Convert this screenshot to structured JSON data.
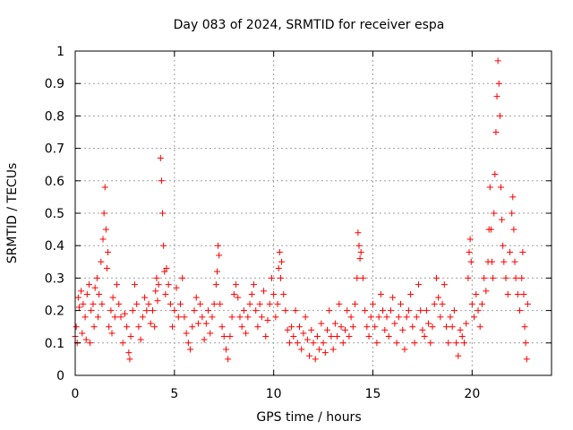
{
  "chart_data": {
    "type": "scatter",
    "title": "Day 083 of 2024, SRMTID for receiver espa",
    "xlabel": "GPS time / hours",
    "ylabel": "SRMTID / TECUs",
    "xlim": [
      0,
      24
    ],
    "ylim": [
      0,
      1
    ],
    "x_ticks": [
      {
        "value": 0,
        "label": "0"
      },
      {
        "value": 5,
        "label": "5"
      },
      {
        "value": 10,
        "label": "10"
      },
      {
        "value": 15,
        "label": "15"
      },
      {
        "value": 20,
        "label": "20"
      }
    ],
    "y_ticks": [
      {
        "value": 0,
        "label": "0"
      },
      {
        "value": 0.1,
        "label": "0.1"
      },
      {
        "value": 0.2,
        "label": "0.2"
      },
      {
        "value": 0.3,
        "label": "0.3"
      },
      {
        "value": 0.4,
        "label": "0.4"
      },
      {
        "value": 0.5,
        "label": "0.5"
      },
      {
        "value": 0.6,
        "label": "0.6"
      },
      {
        "value": 0.7,
        "label": "0.7"
      },
      {
        "value": 0.8,
        "label": "0.8"
      },
      {
        "value": 0.9,
        "label": "0.9"
      },
      {
        "value": 1,
        "label": "1"
      }
    ],
    "grid": true,
    "legend": "none",
    "marker": "plus",
    "color": "#ff0000",
    "series": [
      {
        "name": "SRMTID",
        "points": [
          [
            0.0,
            0.12
          ],
          [
            0.05,
            0.15
          ],
          [
            0.1,
            0.1
          ],
          [
            0.15,
            0.24
          ],
          [
            0.2,
            0.21
          ],
          [
            0.3,
            0.26
          ],
          [
            0.35,
            0.13
          ],
          [
            0.4,
            0.22
          ],
          [
            0.5,
            0.18
          ],
          [
            0.55,
            0.11
          ],
          [
            0.6,
            0.25
          ],
          [
            0.7,
            0.28
          ],
          [
            0.75,
            0.1
          ],
          [
            0.8,
            0.2
          ],
          [
            0.9,
            0.22
          ],
          [
            0.95,
            0.15
          ],
          [
            1.0,
            0.27
          ],
          [
            1.1,
            0.3
          ],
          [
            1.15,
            0.18
          ],
          [
            1.2,
            0.25
          ],
          [
            1.3,
            0.35
          ],
          [
            1.35,
            0.22
          ],
          [
            1.4,
            0.42
          ],
          [
            1.45,
            0.5
          ],
          [
            1.5,
            0.58
          ],
          [
            1.55,
            0.45
          ],
          [
            1.6,
            0.33
          ],
          [
            1.65,
            0.38
          ],
          [
            1.7,
            0.15
          ],
          [
            1.8,
            0.2
          ],
          [
            1.85,
            0.13
          ],
          [
            1.9,
            0.24
          ],
          [
            2.0,
            0.18
          ],
          [
            2.1,
            0.28
          ],
          [
            2.2,
            0.22
          ],
          [
            2.3,
            0.18
          ],
          [
            2.4,
            0.1
          ],
          [
            2.5,
            0.19
          ],
          [
            2.6,
            0.15
          ],
          [
            2.7,
            0.07
          ],
          [
            2.75,
            0.05
          ],
          [
            2.8,
            0.12
          ],
          [
            2.9,
            0.2
          ],
          [
            3.0,
            0.28
          ],
          [
            3.1,
            0.22
          ],
          [
            3.2,
            0.15
          ],
          [
            3.3,
            0.11
          ],
          [
            3.4,
            0.18
          ],
          [
            3.5,
            0.24
          ],
          [
            3.6,
            0.2
          ],
          [
            3.7,
            0.22
          ],
          [
            3.8,
            0.16
          ],
          [
            3.9,
            0.2
          ],
          [
            4.0,
            0.15
          ],
          [
            4.05,
            0.26
          ],
          [
            4.1,
            0.3
          ],
          [
            4.15,
            0.23
          ],
          [
            4.2,
            0.28
          ],
          [
            4.3,
            0.67
          ],
          [
            4.35,
            0.6
          ],
          [
            4.4,
            0.5
          ],
          [
            4.45,
            0.4
          ],
          [
            4.5,
            0.32
          ],
          [
            4.55,
            0.25
          ],
          [
            4.6,
            0.33
          ],
          [
            4.7,
            0.28
          ],
          [
            4.8,
            0.22
          ],
          [
            4.9,
            0.15
          ],
          [
            5.0,
            0.2
          ],
          [
            5.1,
            0.27
          ],
          [
            5.2,
            0.18
          ],
          [
            5.3,
            0.22
          ],
          [
            5.4,
            0.3
          ],
          [
            5.5,
            0.18
          ],
          [
            5.6,
            0.13
          ],
          [
            5.7,
            0.1
          ],
          [
            5.8,
            0.08
          ],
          [
            5.9,
            0.15
          ],
          [
            6.0,
            0.2
          ],
          [
            6.1,
            0.24
          ],
          [
            6.2,
            0.16
          ],
          [
            6.3,
            0.22
          ],
          [
            6.4,
            0.18
          ],
          [
            6.5,
            0.11
          ],
          [
            6.6,
            0.16
          ],
          [
            6.7,
            0.2
          ],
          [
            6.8,
            0.13
          ],
          [
            6.9,
            0.18
          ],
          [
            7.0,
            0.22
          ],
          [
            7.1,
            0.28
          ],
          [
            7.15,
            0.32
          ],
          [
            7.2,
            0.4
          ],
          [
            7.25,
            0.37
          ],
          [
            7.3,
            0.22
          ],
          [
            7.4,
            0.15
          ],
          [
            7.5,
            0.12
          ],
          [
            7.6,
            0.08
          ],
          [
            7.7,
            0.05
          ],
          [
            7.8,
            0.12
          ],
          [
            7.9,
            0.18
          ],
          [
            8.0,
            0.25
          ],
          [
            8.1,
            0.28
          ],
          [
            8.2,
            0.24
          ],
          [
            8.3,
            0.18
          ],
          [
            8.4,
            0.15
          ],
          [
            8.5,
            0.2
          ],
          [
            8.6,
            0.13
          ],
          [
            8.7,
            0.18
          ],
          [
            8.8,
            0.22
          ],
          [
            8.9,
            0.25
          ],
          [
            9.0,
            0.28
          ],
          [
            9.1,
            0.2
          ],
          [
            9.2,
            0.15
          ],
          [
            9.3,
            0.22
          ],
          [
            9.4,
            0.18
          ],
          [
            9.5,
            0.26
          ],
          [
            9.6,
            0.12
          ],
          [
            9.7,
            0.17
          ],
          [
            9.8,
            0.22
          ],
          [
            9.9,
            0.3
          ],
          [
            10.0,
            0.25
          ],
          [
            10.1,
            0.18
          ],
          [
            10.2,
            0.22
          ],
          [
            10.25,
            0.33
          ],
          [
            10.3,
            0.38
          ],
          [
            10.35,
            0.3
          ],
          [
            10.4,
            0.35
          ],
          [
            10.5,
            0.25
          ],
          [
            10.6,
            0.2
          ],
          [
            10.7,
            0.14
          ],
          [
            10.8,
            0.1
          ],
          [
            10.9,
            0.15
          ],
          [
            11.0,
            0.12
          ],
          [
            11.1,
            0.2
          ],
          [
            11.2,
            0.1
          ],
          [
            11.3,
            0.15
          ],
          [
            11.4,
            0.08
          ],
          [
            11.5,
            0.13
          ],
          [
            11.6,
            0.18
          ],
          [
            11.7,
            0.11
          ],
          [
            11.8,
            0.06
          ],
          [
            11.9,
            0.14
          ],
          [
            12.0,
            0.1
          ],
          [
            12.1,
            0.05
          ],
          [
            12.2,
            0.12
          ],
          [
            12.3,
            0.08
          ],
          [
            12.4,
            0.16
          ],
          [
            12.5,
            0.1
          ],
          [
            12.6,
            0.07
          ],
          [
            12.7,
            0.14
          ],
          [
            12.8,
            0.2
          ],
          [
            12.9,
            0.12
          ],
          [
            13.0,
            0.08
          ],
          [
            13.1,
            0.16
          ],
          [
            13.2,
            0.12
          ],
          [
            13.3,
            0.22
          ],
          [
            13.4,
            0.15
          ],
          [
            13.5,
            0.1
          ],
          [
            13.6,
            0.14
          ],
          [
            13.7,
            0.2
          ],
          [
            13.8,
            0.12
          ],
          [
            13.9,
            0.18
          ],
          [
            14.0,
            0.15
          ],
          [
            14.1,
            0.22
          ],
          [
            14.2,
            0.3
          ],
          [
            14.25,
            0.44
          ],
          [
            14.3,
            0.4
          ],
          [
            14.35,
            0.36
          ],
          [
            14.4,
            0.38
          ],
          [
            14.5,
            0.3
          ],
          [
            14.6,
            0.2
          ],
          [
            14.7,
            0.15
          ],
          [
            14.8,
            0.12
          ],
          [
            14.9,
            0.18
          ],
          [
            15.0,
            0.22
          ],
          [
            15.1,
            0.15
          ],
          [
            15.2,
            0.1
          ],
          [
            15.3,
            0.18
          ],
          [
            15.4,
            0.25
          ],
          [
            15.5,
            0.2
          ],
          [
            15.6,
            0.14
          ],
          [
            15.7,
            0.18
          ],
          [
            15.8,
            0.12
          ],
          [
            15.9,
            0.2
          ],
          [
            16.0,
            0.24
          ],
          [
            16.1,
            0.16
          ],
          [
            16.2,
            0.1
          ],
          [
            16.3,
            0.18
          ],
          [
            16.4,
            0.22
          ],
          [
            16.5,
            0.14
          ],
          [
            16.6,
            0.08
          ],
          [
            16.7,
            0.18
          ],
          [
            16.8,
            0.2
          ],
          [
            16.9,
            0.25
          ],
          [
            17.0,
            0.15
          ],
          [
            17.1,
            0.1
          ],
          [
            17.2,
            0.18
          ],
          [
            17.3,
            0.28
          ],
          [
            17.4,
            0.2
          ],
          [
            17.5,
            0.14
          ],
          [
            17.6,
            0.12
          ],
          [
            17.7,
            0.2
          ],
          [
            17.8,
            0.16
          ],
          [
            17.9,
            0.1
          ],
          [
            18.0,
            0.15
          ],
          [
            18.1,
            0.22
          ],
          [
            18.2,
            0.3
          ],
          [
            18.3,
            0.24
          ],
          [
            18.4,
            0.18
          ],
          [
            18.5,
            0.22
          ],
          [
            18.6,
            0.28
          ],
          [
            18.7,
            0.15
          ],
          [
            18.8,
            0.1
          ],
          [
            18.9,
            0.18
          ],
          [
            19.0,
            0.15
          ],
          [
            19.1,
            0.2
          ],
          [
            19.2,
            0.1
          ],
          [
            19.3,
            0.06
          ],
          [
            19.4,
            0.14
          ],
          [
            19.5,
            0.12
          ],
          [
            19.6,
            0.1
          ],
          [
            19.7,
            0.16
          ],
          [
            19.8,
            0.3
          ],
          [
            19.85,
            0.38
          ],
          [
            19.9,
            0.42
          ],
          [
            19.95,
            0.35
          ],
          [
            20.0,
            0.22
          ],
          [
            20.1,
            0.18
          ],
          [
            20.2,
            0.25
          ],
          [
            20.3,
            0.2
          ],
          [
            20.4,
            0.15
          ],
          [
            20.5,
            0.22
          ],
          [
            20.6,
            0.3
          ],
          [
            20.7,
            0.26
          ],
          [
            20.8,
            0.35
          ],
          [
            20.85,
            0.45
          ],
          [
            20.9,
            0.58
          ],
          [
            20.95,
            0.45
          ],
          [
            21.0,
            0.35
          ],
          [
            21.05,
            0.3
          ],
          [
            21.1,
            0.5
          ],
          [
            21.15,
            0.62
          ],
          [
            21.2,
            0.75
          ],
          [
            21.25,
            0.86
          ],
          [
            21.3,
            0.97
          ],
          [
            21.35,
            0.9
          ],
          [
            21.4,
            0.8
          ],
          [
            21.45,
            0.58
          ],
          [
            21.5,
            0.48
          ],
          [
            21.55,
            0.4
          ],
          [
            21.6,
            0.35
          ],
          [
            21.7,
            0.3
          ],
          [
            21.8,
            0.25
          ],
          [
            21.9,
            0.38
          ],
          [
            22.0,
            0.5
          ],
          [
            22.05,
            0.55
          ],
          [
            22.1,
            0.45
          ],
          [
            22.15,
            0.35
          ],
          [
            22.2,
            0.3
          ],
          [
            22.3,
            0.25
          ],
          [
            22.4,
            0.2
          ],
          [
            22.5,
            0.3
          ],
          [
            22.55,
            0.38
          ],
          [
            22.6,
            0.25
          ],
          [
            22.65,
            0.15
          ],
          [
            22.7,
            0.1
          ],
          [
            22.75,
            0.05
          ],
          [
            22.8,
            0.22
          ]
        ]
      }
    ]
  }
}
